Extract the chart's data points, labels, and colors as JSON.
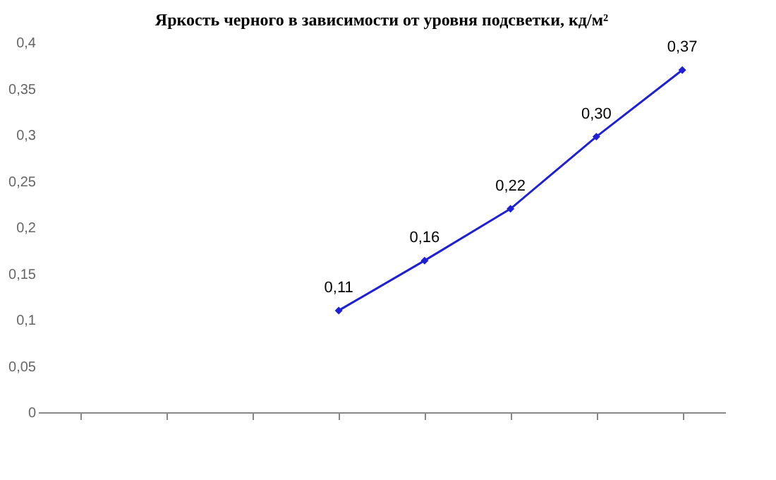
{
  "chart_data": {
    "type": "line",
    "title": "Яркость черного в зависимости от уровня подсветки, кд/м²",
    "categories": [
      null,
      null,
      null,
      null,
      null,
      null,
      null,
      null
    ],
    "series": [
      {
        "color": "#1f1fd6",
        "values": [
          null,
          null,
          null,
          0.11,
          0.164,
          0.22,
          0.298,
          0.37
        ],
        "value_labels": [
          null,
          null,
          null,
          "0,11",
          "0,16",
          "0,22",
          "0,30",
          "0,37"
        ]
      }
    ],
    "ylim": [
      0,
      0.4
    ],
    "yticks": [
      0,
      {
        "value": 0.05,
        "label": "0,05"
      },
      {
        "value": 0.1,
        "label": "0,1"
      },
      {
        "value": 0.15,
        "label": "0,15"
      },
      {
        "value": 0.2,
        "label": "0,2"
      },
      {
        "value": 0.25,
        "label": "0,25"
      },
      {
        "value": 0.3,
        "label": "0,3"
      },
      {
        "value": 0.35,
        "label": "0,35"
      },
      {
        "value": 0.4,
        "label": "0,4"
      }
    ],
    "tick_labels": "y",
    "grid": false,
    "marker": "diamond",
    "line_style": "solid"
  }
}
